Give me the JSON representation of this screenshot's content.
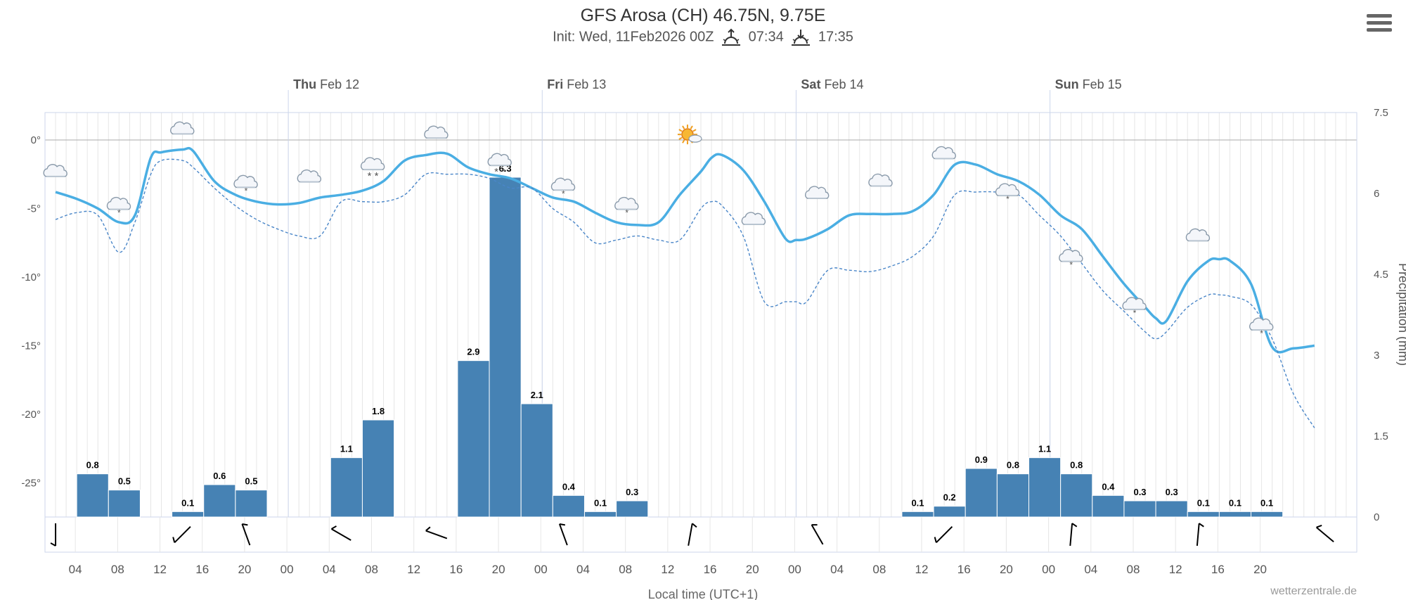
{
  "header": {
    "title": "GFS Arosa (CH) 46.75N, 9.75E",
    "init_text": "Init: Wed, 11Feb2026 00Z",
    "sunrise": "07:34",
    "sunset": "17:35"
  },
  "menu": {
    "icon": "hamburger-menu-icon"
  },
  "credits": "wetterzentrale.de",
  "colors": {
    "temperature": "#4aaee3",
    "dewpoint": "#4a86c8",
    "precip_bar": "#4682b4",
    "grid": "#e6e6e6",
    "plot_border": "#ccd6eb",
    "zero_line": "#aaaaaa"
  },
  "chart_data": {
    "type": "line",
    "xlabel": "Local time (UTC+1)",
    "ylabel_right": "Precipitation (mm)",
    "y_left": {
      "min": -27.5,
      "max": 2,
      "ticks": [
        0,
        -5,
        -10,
        -15,
        -20,
        -25
      ],
      "tick_labels": [
        "0°",
        "-5°",
        "-10°",
        "-15°",
        "-20°",
        "-25°"
      ]
    },
    "y_right": {
      "min": 0,
      "max": 7.5,
      "ticks": [
        0,
        1.5,
        3,
        4.5,
        6,
        7.5
      ],
      "tick_labels": [
        "0",
        "1.5",
        "3",
        "4.5",
        "6",
        "7.5"
      ]
    },
    "x_range_hours": [
      1,
      125
    ],
    "day_labels": [
      {
        "hour": 24,
        "day": "Thu",
        "date": "Feb 12"
      },
      {
        "hour": 48,
        "day": "Fri",
        "date": "Feb 13"
      },
      {
        "hour": 72,
        "day": "Sat",
        "date": "Feb 14"
      },
      {
        "hour": 96,
        "day": "Sun",
        "date": "Feb 15"
      }
    ],
    "x_ticks": [
      {
        "hour": 4,
        "label": "04"
      },
      {
        "hour": 8,
        "label": "08"
      },
      {
        "hour": 12,
        "label": "12"
      },
      {
        "hour": 16,
        "label": "16"
      },
      {
        "hour": 20,
        "label": "20"
      },
      {
        "hour": 24,
        "label": "00"
      },
      {
        "hour": 28,
        "label": "04"
      },
      {
        "hour": 32,
        "label": "08"
      },
      {
        "hour": 36,
        "label": "12"
      },
      {
        "hour": 40,
        "label": "16"
      },
      {
        "hour": 44,
        "label": "20"
      },
      {
        "hour": 48,
        "label": "00"
      },
      {
        "hour": 52,
        "label": "04"
      },
      {
        "hour": 56,
        "label": "08"
      },
      {
        "hour": 60,
        "label": "12"
      },
      {
        "hour": 64,
        "label": "16"
      },
      {
        "hour": 68,
        "label": "20"
      },
      {
        "hour": 72,
        "label": "00"
      },
      {
        "hour": 76,
        "label": "04"
      },
      {
        "hour": 80,
        "label": "08"
      },
      {
        "hour": 84,
        "label": "12"
      },
      {
        "hour": 88,
        "label": "16"
      },
      {
        "hour": 92,
        "label": "20"
      },
      {
        "hour": 96,
        "label": "00"
      },
      {
        "hour": 100,
        "label": "04"
      },
      {
        "hour": 104,
        "label": "08"
      },
      {
        "hour": 108,
        "label": "12"
      },
      {
        "hour": 112,
        "label": "16"
      },
      {
        "hour": 116,
        "label": "20"
      }
    ],
    "series": [
      {
        "kind": "temperature",
        "x": [
          2,
          4,
          6,
          8,
          9.5,
          11,
          12,
          14,
          15,
          17,
          19,
          21,
          23,
          25,
          27,
          29,
          31,
          33,
          35,
          37,
          39,
          41,
          43,
          45,
          47,
          49,
          51,
          53,
          55,
          57,
          59,
          61,
          63,
          64,
          65,
          67,
          69,
          71,
          72,
          73,
          75,
          77,
          79,
          81,
          83,
          85,
          87,
          89,
          91,
          93,
          95,
          97,
          99,
          101,
          103,
          105,
          106,
          107,
          109,
          111,
          112,
          113,
          115,
          117,
          119,
          121
        ],
        "y": [
          -3.8,
          -4.3,
          -5,
          -6,
          -5.5,
          -1.3,
          -0.9,
          -0.7,
          -0.8,
          -3,
          -4,
          -4.5,
          -4.7,
          -4.6,
          -4.2,
          -4,
          -3.7,
          -3,
          -1.5,
          -1.1,
          -1,
          -2,
          -2.5,
          -2.8,
          -3.5,
          -4.2,
          -4.5,
          -5.3,
          -6,
          -6.2,
          -6,
          -4,
          -2.3,
          -1.3,
          -1.1,
          -2.2,
          -4.5,
          -7.2,
          -7.3,
          -7.2,
          -6.5,
          -5.5,
          -5.4,
          -5.4,
          -5.2,
          -4,
          -1.8,
          -1.8,
          -2.5,
          -3,
          -4,
          -5.5,
          -6.5,
          -8.5,
          -10.5,
          -12.2,
          -13,
          -13.2,
          -10.3,
          -8.8,
          -8.7,
          -8.8,
          -10.5,
          -15.1,
          -15.2,
          -15
        ]
      },
      {
        "kind": "dewpoint",
        "x": [
          2,
          4,
          6,
          8,
          9.5,
          11,
          12,
          14,
          15,
          17,
          19,
          21,
          23,
          25,
          27,
          29,
          31,
          33,
          35,
          37,
          39,
          41,
          43,
          45,
          47,
          49,
          51,
          53,
          55,
          57,
          59,
          61,
          63,
          64,
          65,
          67,
          69,
          71,
          72,
          73,
          75,
          77,
          79,
          81,
          83,
          85,
          87,
          89,
          91,
          93,
          95,
          97,
          99,
          101,
          103,
          105,
          106,
          107,
          109,
          111,
          112,
          113,
          115,
          117,
          119,
          121
        ],
        "y": [
          -5.8,
          -5.3,
          -5.5,
          -8.2,
          -6,
          -2.5,
          -1.5,
          -1.5,
          -2,
          -3.5,
          -4.8,
          -5.8,
          -6.5,
          -7,
          -7,
          -4.5,
          -4.5,
          -4.5,
          -4,
          -2.5,
          -2.5,
          -2.5,
          -2.8,
          -3.5,
          -3.5,
          -5,
          -6,
          -7.5,
          -7.3,
          -7,
          -7.3,
          -7.3,
          -5,
          -4.5,
          -4.8,
          -7,
          -11.8,
          -11.8,
          -11.8,
          -11.8,
          -9.5,
          -9.5,
          -9.6,
          -9.2,
          -8.5,
          -7,
          -4,
          -3.8,
          -3.8,
          -4,
          -5.5,
          -7,
          -9,
          -11,
          -12.5,
          -14,
          -14.5,
          -14,
          -12.2,
          -11.3,
          -11.3,
          -11.4,
          -12,
          -14.5,
          -18.5,
          -21
        ]
      }
    ],
    "precipitation": {
      "bars": [
        {
          "start": 4,
          "end": 7,
          "value": 0.8,
          "label": "0.8"
        },
        {
          "start": 7,
          "end": 10,
          "value": 0.5,
          "label": "0.5"
        },
        {
          "start": 13,
          "end": 16,
          "value": 0.1,
          "label": "0.1"
        },
        {
          "start": 16,
          "end": 19,
          "value": 0.6,
          "label": "0.6"
        },
        {
          "start": 19,
          "end": 22,
          "value": 0.5,
          "label": "0.5"
        },
        {
          "start": 28,
          "end": 31,
          "value": 1.1,
          "label": "1.1"
        },
        {
          "start": 31,
          "end": 34,
          "value": 1.8,
          "label": "1.8"
        },
        {
          "start": 40,
          "end": 43,
          "value": 2.9,
          "label": "2.9"
        },
        {
          "start": 43,
          "end": 46,
          "value": 6.3,
          "label": "6.3"
        },
        {
          "start": 46,
          "end": 49,
          "value": 2.1,
          "label": "2.1"
        },
        {
          "start": 49,
          "end": 52,
          "value": 0.4,
          "label": "0.4"
        },
        {
          "start": 52,
          "end": 55,
          "value": 0.1,
          "label": "0.1"
        },
        {
          "start": 55,
          "end": 58,
          "value": 0.3,
          "label": "0.3"
        },
        {
          "start": 82,
          "end": 85,
          "value": 0.1,
          "label": "0.1"
        },
        {
          "start": 85,
          "end": 88,
          "value": 0.2,
          "label": "0.2"
        },
        {
          "start": 88,
          "end": 91,
          "value": 0.9,
          "label": "0.9"
        },
        {
          "start": 91,
          "end": 94,
          "value": 0.8,
          "label": "0.8"
        },
        {
          "start": 94,
          "end": 97,
          "value": 1.1,
          "label": "1.1"
        },
        {
          "start": 97,
          "end": 100,
          "value": 0.8,
          "label": "0.8"
        },
        {
          "start": 100,
          "end": 103,
          "value": 0.4,
          "label": "0.4"
        },
        {
          "start": 103,
          "end": 106,
          "value": 0.3,
          "label": "0.3"
        },
        {
          "start": 106,
          "end": 109,
          "value": 0.3,
          "label": "0.3"
        },
        {
          "start": 109,
          "end": 112,
          "value": 0.1,
          "label": "0.1"
        },
        {
          "start": 112,
          "end": 115,
          "value": 0.1,
          "label": "0.1"
        },
        {
          "start": 115,
          "end": 118,
          "value": 0.1,
          "label": "0.1"
        }
      ]
    },
    "weather_symbols": [
      {
        "hour": 2,
        "temp": -2.3,
        "icon": "cloud-icon"
      },
      {
        "hour": 8,
        "temp": -4.7,
        "icon": "cloud-snow-icon"
      },
      {
        "hour": 14,
        "temp": 0.8,
        "icon": "cloud-icon"
      },
      {
        "hour": 20,
        "temp": -3.1,
        "icon": "cloud-snow-icon"
      },
      {
        "hour": 26,
        "temp": -2.7,
        "icon": "cloud-icon"
      },
      {
        "hour": 32,
        "temp": -1.8,
        "icon": "heavy-snow-icon"
      },
      {
        "hour": 38,
        "temp": 0.5,
        "icon": "cloud-icon"
      },
      {
        "hour": 44,
        "temp": -1.5,
        "icon": "heavy-snow-icon"
      },
      {
        "hour": 50,
        "temp": -3.3,
        "icon": "cloud-snow-icon"
      },
      {
        "hour": 56,
        "temp": -4.7,
        "icon": "cloud-snow-icon"
      },
      {
        "hour": 62,
        "temp": 0.3,
        "icon": "sun-cloud-icon"
      },
      {
        "hour": 68,
        "temp": -5.8,
        "icon": "cloud-icon"
      },
      {
        "hour": 74,
        "temp": -3.9,
        "icon": "cloud-icon"
      },
      {
        "hour": 80,
        "temp": -3,
        "icon": "cloud-icon"
      },
      {
        "hour": 86,
        "temp": -1,
        "icon": "cloud-icon"
      },
      {
        "hour": 92,
        "temp": -3.7,
        "icon": "cloud-snow-icon"
      },
      {
        "hour": 98,
        "temp": -8.5,
        "icon": "cloud-snow-icon"
      },
      {
        "hour": 104,
        "temp": -12,
        "icon": "cloud-snow-icon"
      },
      {
        "hour": 110,
        "temp": -7,
        "icon": "cloud-icon"
      },
      {
        "hour": 116,
        "temp": -13.5,
        "icon": "cloud-snow-icon"
      }
    ],
    "wind_barbs": [
      {
        "hour": 2,
        "direction_deg": 180
      },
      {
        "hour": 14,
        "direction_deg": 225
      },
      {
        "hour": 20,
        "direction_deg": 340
      },
      {
        "hour": 29,
        "direction_deg": 300
      },
      {
        "hour": 38,
        "direction_deg": 290
      },
      {
        "hour": 50,
        "direction_deg": 340
      },
      {
        "hour": 62,
        "direction_deg": 10
      },
      {
        "hour": 74,
        "direction_deg": 330
      },
      {
        "hour": 86,
        "direction_deg": 225
      },
      {
        "hour": 98,
        "direction_deg": 5
      },
      {
        "hour": 110,
        "direction_deg": 5
      },
      {
        "hour": 122,
        "direction_deg": 310
      }
    ]
  }
}
